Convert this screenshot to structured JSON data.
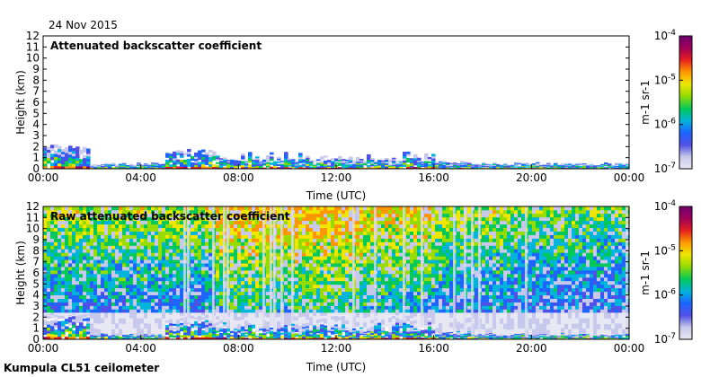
{
  "date_label": "24 Nov 2015",
  "footer_label": "Kumpula CL51 ceilometer",
  "colors": {
    "colormap": [
      "#e8e8f4",
      "#c8c8ec",
      "#5050e6",
      "#1e64ff",
      "#00b4dc",
      "#00c85a",
      "#96dc00",
      "#f0e600",
      "#ff9600",
      "#e61e1e",
      "#a0005a",
      "#700070"
    ]
  },
  "chart_data": [
    {
      "type": "heatmap",
      "title": "Attenuated backscatter coefficient",
      "xlabel": "Time (UTC)",
      "ylabel": "Height (km)",
      "x_ticks": [
        "00:00",
        "04:00",
        "08:00",
        "12:00",
        "16:00",
        "20:00",
        "00:00"
      ],
      "y_ticks": [
        "0",
        "1",
        "2",
        "3",
        "4",
        "5",
        "6",
        "7",
        "8",
        "9",
        "10",
        "11",
        "12"
      ],
      "ylim": [
        0,
        12
      ],
      "xlim_hours": [
        0,
        24
      ],
      "colorbar": {
        "label": "m-1 sr-1",
        "scale": "log",
        "ticks": [
          {
            "base": "10",
            "exp": "-4"
          },
          {
            "base": "10",
            "exp": "-5"
          },
          {
            "base": "10",
            "exp": "-6"
          },
          {
            "base": "10",
            "exp": "-7"
          }
        ],
        "range": [
          1e-07,
          0.0001
        ]
      }
    },
    {
      "type": "heatmap",
      "title": "Raw attenuated backscatter coefficient",
      "xlabel": "Time (UTC)",
      "ylabel": "Height (km)",
      "x_ticks": [
        "00:00",
        "04:00",
        "08:00",
        "12:00",
        "16:00",
        "20:00",
        "00:00"
      ],
      "y_ticks": [
        "0",
        "1",
        "2",
        "3",
        "4",
        "5",
        "6",
        "7",
        "8",
        "9",
        "10",
        "11",
        "12"
      ],
      "ylim": [
        0,
        12
      ],
      "xlim_hours": [
        0,
        24
      ],
      "colorbar": {
        "label": "m-1 sr-1",
        "scale": "log",
        "ticks": [
          {
            "base": "10",
            "exp": "-4"
          },
          {
            "base": "10",
            "exp": "-5"
          },
          {
            "base": "10",
            "exp": "-6"
          },
          {
            "base": "10",
            "exp": "-7"
          }
        ],
        "range": [
          1e-07,
          0.0001
        ]
      }
    }
  ]
}
